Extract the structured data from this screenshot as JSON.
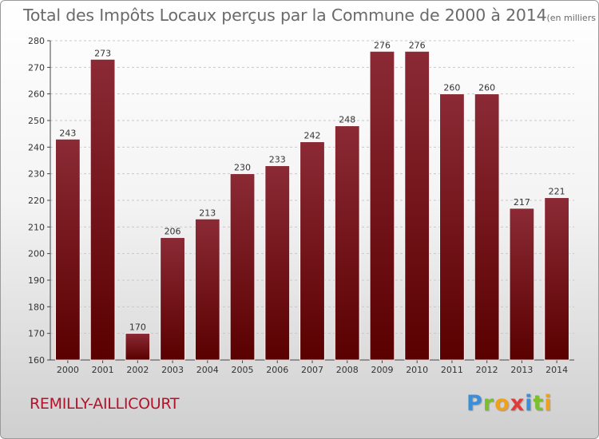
{
  "chart_data": {
    "type": "bar",
    "title": "Total des Impôts Locaux perçus par la Commune de 2000 à 2014",
    "unit": "(en milliers d'€)",
    "xlabel": "",
    "ylabel": "",
    "categories": [
      "2000",
      "2001",
      "2002",
      "2003",
      "2004",
      "2005",
      "2006",
      "2007",
      "2008",
      "2009",
      "2010",
      "2011",
      "2012",
      "2013",
      "2014"
    ],
    "values": [
      243,
      273,
      170,
      206,
      213,
      230,
      233,
      242,
      248,
      276,
      276,
      260,
      260,
      217,
      221
    ],
    "ylim": [
      160,
      280
    ],
    "yticks": [
      160,
      170,
      180,
      190,
      200,
      210,
      220,
      230,
      240,
      250,
      260,
      270,
      280
    ],
    "grid": true,
    "colors": {
      "bar_top": "#8b2a35",
      "bar_bottom": "#5a0000"
    }
  },
  "commune": "REMILLY-AILLICOURT",
  "logo": {
    "letters": [
      {
        "char": "P",
        "color": "#3a8fd8"
      },
      {
        "char": "r",
        "color": "#7bbf2a"
      },
      {
        "char": "o",
        "color": "#f3a019"
      },
      {
        "char": "x",
        "color": "#e03a3a"
      },
      {
        "char": "i",
        "color": "#3a8fd8"
      },
      {
        "char": "t",
        "color": "#7bbf2a"
      },
      {
        "char": "i",
        "color": "#f3a019"
      }
    ]
  }
}
